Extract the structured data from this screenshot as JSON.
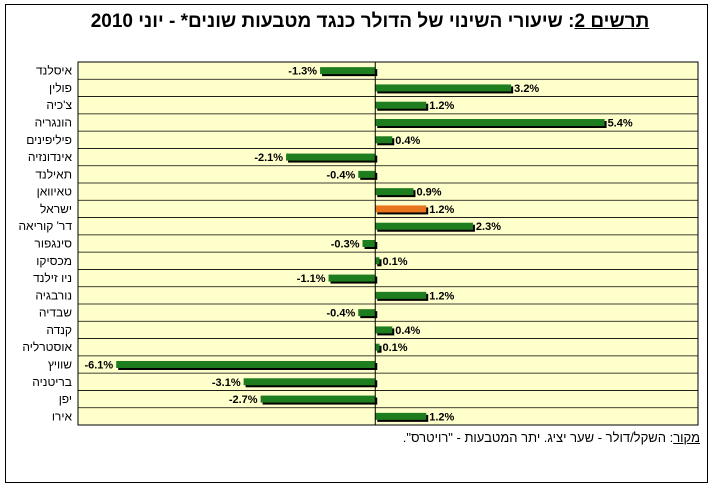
{
  "title": {
    "label": "תרשים 2",
    "text": ": שיעורי השינוי של הדולר כנגד מטבעות שונים* - יוני 2010"
  },
  "source": {
    "label": "מקור",
    "text": ": השקל/דולר - שער יציג. יתר המטבעות - \"רויטרס\"."
  },
  "colors": {
    "bar": "#1e7d1e",
    "highlight": "#e8741e",
    "plot_bg": "#ffffcc",
    "shadow": "#000000"
  },
  "chart_data": {
    "type": "bar",
    "orientation": "horizontal",
    "categories": [
      "איסלנד",
      "פולין",
      "צ'כיה",
      "הונגריה",
      "פיליפינים",
      "אינדונזיה",
      "תאילנד",
      "טאיוואן",
      "ישראל",
      "דר' קוריאה",
      "סינגפור",
      "מכסיקו",
      "ניו זילנד",
      "נורבגיה",
      "שבדיה",
      "קנדה",
      "אוסטרליה",
      "שוויץ",
      "בריטניה",
      "יפן",
      "אירו"
    ],
    "values": [
      -1.3,
      3.2,
      1.2,
      5.4,
      0.4,
      -2.1,
      -0.4,
      0.9,
      1.2,
      2.3,
      -0.3,
      0.1,
      -1.1,
      1.2,
      -0.4,
      0.4,
      0.1,
      -6.1,
      -3.1,
      -2.7,
      1.2
    ],
    "value_labels": [
      "-1.3%",
      "3.2%",
      "1.2%",
      "5.4%",
      "0.4%",
      "-2.1%",
      "-0.4%",
      "0.9%",
      "1.2%",
      "2.3%",
      "-0.3%",
      "0.1%",
      "-1.1%",
      "1.2%",
      "-0.4%",
      "0.4%",
      "0.1%",
      "-6.1%",
      "-3.1%",
      "-2.7%",
      "1.2%"
    ],
    "highlight_category": "ישראל",
    "xlim": [
      -7.0,
      7.6
    ],
    "grid": "horizontal"
  }
}
